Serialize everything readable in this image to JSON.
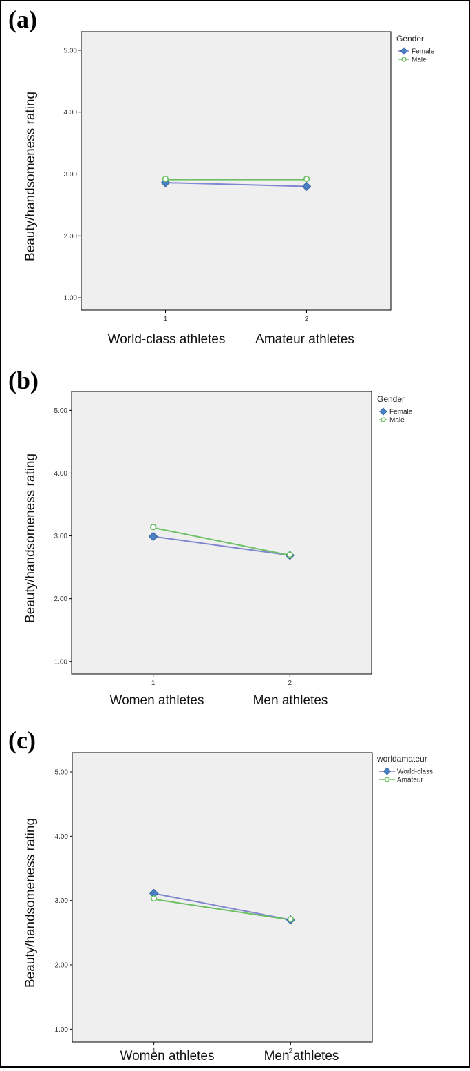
{
  "colors": {
    "series_a": "#4a81c4",
    "series_b": "#6cc063",
    "series_a_line": "#8085cf",
    "plot_bg": "#efefef"
  },
  "panels": [
    {
      "label": "(a)"
    },
    {
      "label": "(b)"
    },
    {
      "label": "(c)"
    }
  ],
  "chart_data": [
    {
      "type": "line",
      "ylabel": "Beauty/handsomeness rating",
      "x": [
        1,
        2
      ],
      "x_ticks": [
        "1",
        "2"
      ],
      "x_captions": [
        "World-class athletes",
        "Amateur athletes"
      ],
      "y_ticks": [
        "1.00",
        "2.00",
        "3.00",
        "4.00",
        "5.00"
      ],
      "ylim": [
        0.8,
        5.3
      ],
      "legend_title": "Gender",
      "legend_position": "top-right",
      "grid": false,
      "series": [
        {
          "name": "Female",
          "values": [
            2.86,
            2.8
          ],
          "marker": "diamond",
          "color": "#4a81c4",
          "line_color": "#8085cf"
        },
        {
          "name": "Male",
          "values": [
            2.91,
            2.91
          ],
          "marker": "circle",
          "color": "#6cc063",
          "line_color": "#6cc063"
        }
      ]
    },
    {
      "type": "line",
      "ylabel": "Beauty/handsomeness rating",
      "x": [
        1,
        2
      ],
      "x_ticks": [
        "1",
        "2"
      ],
      "x_captions": [
        "Women athletes",
        "Men athletes"
      ],
      "y_ticks": [
        "1.00",
        "2.00",
        "3.00",
        "4.00",
        "5.00"
      ],
      "ylim": [
        0.8,
        5.3
      ],
      "legend_title": "Gender",
      "legend_position": "top-right",
      "grid": false,
      "series": [
        {
          "name": "Female",
          "values": [
            2.99,
            2.69
          ],
          "marker": "diamond",
          "color": "#4a81c4",
          "line_color": "#8085cf"
        },
        {
          "name": "Male",
          "values": [
            3.13,
            2.69
          ],
          "marker": "circle",
          "color": "#6cc063",
          "line_color": "#6cc063"
        }
      ]
    },
    {
      "type": "line",
      "ylabel": "Beauty/handsomeness rating",
      "x": [
        1,
        2
      ],
      "x_ticks": [
        "1",
        "2"
      ],
      "x_captions": [
        "Women athletes",
        "Men athletes"
      ],
      "y_ticks": [
        "1.00",
        "2.00",
        "3.00",
        "4.00",
        "5.00"
      ],
      "ylim": [
        0.8,
        5.3
      ],
      "legend_title": "worldamateur",
      "legend_position": "top-right",
      "grid": false,
      "series": [
        {
          "name": "World-class",
          "values": [
            3.11,
            2.7
          ],
          "marker": "diamond",
          "color": "#4a81c4",
          "line_color": "#8085cf"
        },
        {
          "name": "Amateur",
          "values": [
            3.02,
            2.7
          ],
          "marker": "circle",
          "color": "#6cc063",
          "line_color": "#6cc063"
        }
      ]
    }
  ]
}
